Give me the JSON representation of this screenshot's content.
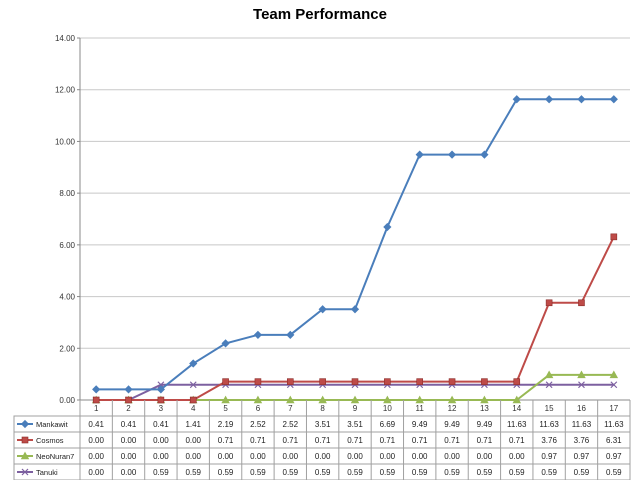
{
  "chart_data": {
    "type": "line",
    "title": "Team Performance",
    "xlabel": "",
    "ylabel": "",
    "ylim": [
      0,
      14
    ],
    "yticks": [
      "0.00",
      "2.00",
      "4.00",
      "6.00",
      "8.00",
      "10.00",
      "12.00",
      "14.00"
    ],
    "grid": true,
    "legend": "table-below",
    "categories": [
      "1",
      "2",
      "3",
      "4",
      "5",
      "6",
      "7",
      "8",
      "9",
      "10",
      "11",
      "12",
      "13",
      "14",
      "15",
      "16",
      "17"
    ],
    "series": [
      {
        "name": "Mankawit",
        "color": "#4a7ebb",
        "marker": "diamond",
        "values": [
          0.41,
          0.41,
          0.41,
          1.41,
          2.19,
          2.52,
          2.52,
          3.51,
          3.51,
          6.69,
          9.49,
          9.49,
          9.49,
          11.63,
          11.63,
          11.63,
          11.63
        ],
        "labels": [
          "0.41",
          "0.41",
          "0.41",
          "1.41",
          "2.19",
          "2.52",
          "2.52",
          "3.51",
          "3.51",
          "6.69",
          "9.49",
          "9.49",
          "9.49",
          "11.63",
          "11.63",
          "11.63",
          "11.63"
        ]
      },
      {
        "name": "Cosmos",
        "color": "#be4b48",
        "marker": "square",
        "values": [
          0,
          0,
          0,
          0,
          0.71,
          0.71,
          0.71,
          0.71,
          0.71,
          0.71,
          0.71,
          0.71,
          0.71,
          0.71,
          3.76,
          3.76,
          6.31
        ],
        "labels": [
          "0.00",
          "0.00",
          "0.00",
          "0.00",
          "0.71",
          "0.71",
          "0.71",
          "0.71",
          "0.71",
          "0.71",
          "0.71",
          "0.71",
          "0.71",
          "0.71",
          "3.76",
          "3.76",
          "6.31"
        ]
      },
      {
        "name": "NeoNuran7",
        "color": "#98b954",
        "marker": "triangle",
        "values": [
          0,
          0,
          0,
          0,
          0,
          0,
          0,
          0,
          0,
          0,
          0,
          0,
          0,
          0,
          0.97,
          0.97,
          0.97
        ],
        "labels": [
          "0.00",
          "0.00",
          "0.00",
          "0.00",
          "0.00",
          "0.00",
          "0.00",
          "0.00",
          "0.00",
          "0.00",
          "0.00",
          "0.00",
          "0.00",
          "0.00",
          "0.97",
          "0.97",
          "0.97"
        ]
      },
      {
        "name": "Tanuki",
        "color": "#7d60a0",
        "marker": "x",
        "values": [
          0,
          0,
          0.59,
          0.59,
          0.59,
          0.59,
          0.59,
          0.59,
          0.59,
          0.59,
          0.59,
          0.59,
          0.59,
          0.59,
          0.59,
          0.59,
          0.59
        ],
        "labels": [
          "0.00",
          "0.00",
          "0.59",
          "0.59",
          "0.59",
          "0.59",
          "0.59",
          "0.59",
          "0.59",
          "0.59",
          "0.59",
          "0.59",
          "0.59",
          "0.59",
          "0.59",
          "0.59",
          "0.59"
        ]
      }
    ]
  }
}
